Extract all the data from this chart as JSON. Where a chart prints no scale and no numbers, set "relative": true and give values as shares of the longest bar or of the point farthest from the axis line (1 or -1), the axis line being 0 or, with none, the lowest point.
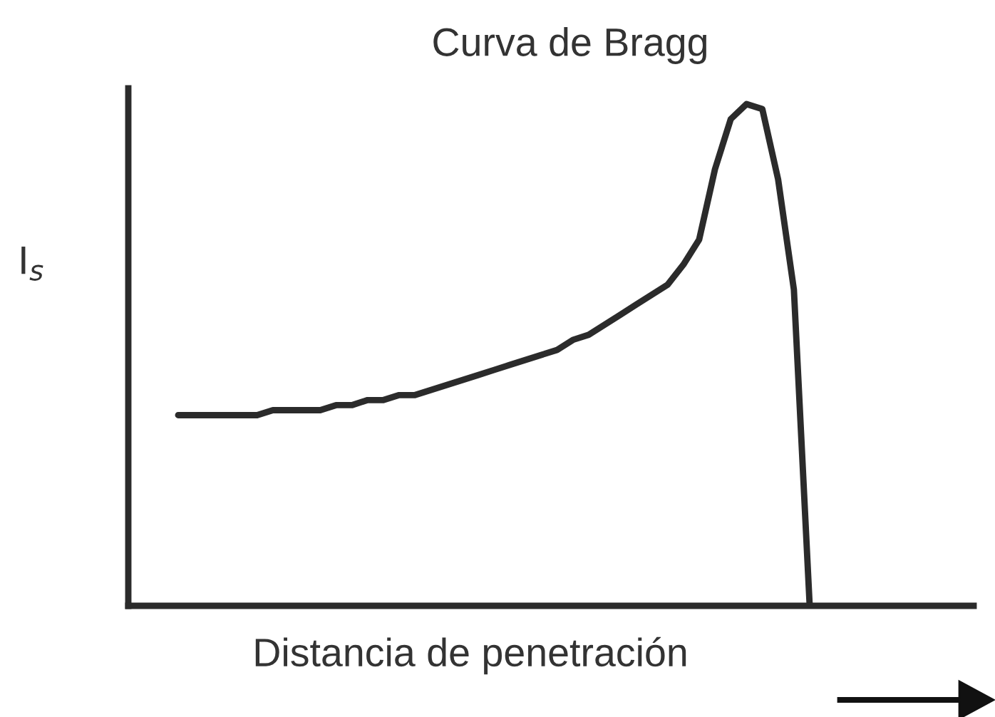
{
  "chart_data": {
    "type": "line",
    "relative": true,
    "title": "Curva de Bragg",
    "xlabel": "Distancia de penetración",
    "ylabel": "I$_{s}$",
    "color": "#2b2b2b",
    "marker": "none",
    "line_style": "solid",
    "grid": false,
    "legend": false,
    "categories": [
      null,
      null,
      null,
      null,
      null,
      null,
      null,
      null,
      null,
      null,
      null,
      null,
      null,
      null,
      null,
      null,
      null,
      null,
      null,
      null,
      null,
      null,
      null,
      null,
      null,
      null,
      null,
      null,
      null,
      null,
      null,
      null,
      null,
      null,
      null,
      null,
      null,
      null,
      null,
      null,
      null
    ],
    "values": [
      0.38,
      0.38,
      0.38,
      0.38,
      0.38,
      0.38,
      0.39,
      0.39,
      0.39,
      0.39,
      0.4,
      0.4,
      0.41,
      0.41,
      0.42,
      0.42,
      0.43,
      0.44,
      0.45,
      0.46,
      0.47,
      0.48,
      0.49,
      0.5,
      0.51,
      0.53,
      0.54,
      0.56,
      0.58,
      0.6,
      0.62,
      0.64,
      0.68,
      0.73,
      0.87,
      0.97,
      1,
      0.99,
      0.85,
      0.63,
      0
    ]
  }
}
